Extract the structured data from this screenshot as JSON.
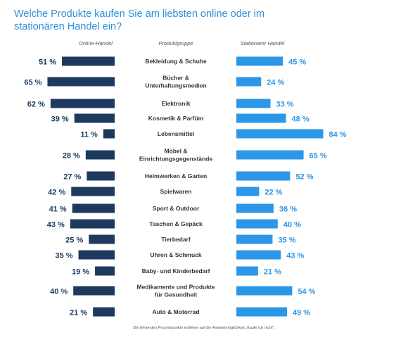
{
  "title": "Welche Produkte kaufen Sie am liebsten online oder im stationären Handel ein?",
  "footnote": "Die fehlenden Prozentpunkte entfielen auf die Antwortmöglichkeit „Kaufe ich nicht\".",
  "colors": {
    "online": "#1d3a5e",
    "stationaer": "#2c97e8",
    "title": "#2f8fd8",
    "online_label": "#1d3a5e",
    "stationaer_label": "#2c97e8",
    "category_label": "#333333",
    "header": "#555555"
  },
  "chart_data": {
    "type": "bar",
    "xlabel": "",
    "ylabel": "",
    "column_headers": {
      "left": "Online-Handel",
      "center": "Produktgruppe",
      "right": "Stationärer Handel"
    },
    "categories": [
      [
        "Bekleidung & Schuhe"
      ],
      [
        "Bücher &",
        "Unterhaltungsmedien"
      ],
      [
        "Elektronik"
      ],
      [
        "Kosmetik & Parfüm"
      ],
      [
        "Lebensmittel"
      ],
      [
        "Möbel &",
        "Einrichtungsgegenstände"
      ],
      [
        "Heimwerken & Garten"
      ],
      [
        "Spielwaren"
      ],
      [
        "Sport & Outdoor"
      ],
      [
        "Taschen & Gepäck"
      ],
      [
        "Tierbedarf"
      ],
      [
        "Uhren & Schmuck"
      ],
      [
        "Baby- und Kinderbedarf"
      ],
      [
        "Medikamente und Produkte",
        "für Gesundheit"
      ],
      [
        "Auto & Motorrad"
      ]
    ],
    "series": [
      {
        "name": "Online-Handel",
        "side": "left",
        "values": [
          51,
          65,
          62,
          39,
          11,
          28,
          27,
          42,
          41,
          43,
          25,
          35,
          19,
          40,
          21
        ]
      },
      {
        "name": "Stationärer Handel",
        "side": "right",
        "values": [
          45,
          24,
          33,
          48,
          84,
          65,
          52,
          22,
          36,
          40,
          35,
          43,
          21,
          54,
          49
        ]
      }
    ],
    "unit": "%",
    "xlim": [
      0,
      100
    ],
    "legend": "none",
    "grid": false
  }
}
